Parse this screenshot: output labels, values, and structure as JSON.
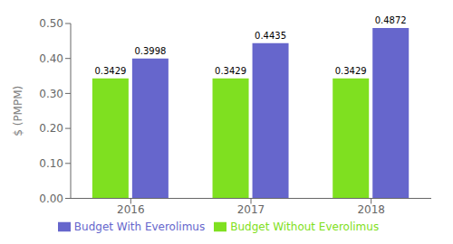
{
  "chart_data": {
    "type": "bar",
    "categories": [
      "2016",
      "2017",
      "2018"
    ],
    "series": [
      {
        "name": "Budget Without Everolimus",
        "color": "#7FE020",
        "values": [
          0.3429,
          0.3429,
          0.3429
        ]
      },
      {
        "name": "Budget With Everolimus",
        "color": "#6666CC",
        "values": [
          0.3998,
          0.4435,
          0.4872
        ]
      }
    ],
    "ylabel": "$ (PMPM)",
    "ylim": [
      0.0,
      0.5
    ],
    "yticks": [
      {
        "value": 0.0,
        "label": "0.00"
      },
      {
        "value": 0.1,
        "label": "0.10"
      },
      {
        "value": 0.2,
        "label": "0.20"
      },
      {
        "value": 0.3,
        "label": "0.30"
      },
      {
        "value": 0.4,
        "label": "0.40"
      },
      {
        "value": 0.5,
        "label": "0.50"
      }
    ],
    "data_labels": true,
    "legend": "bottom"
  }
}
